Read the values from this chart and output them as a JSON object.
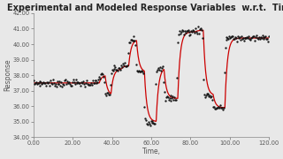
{
  "title": "Experimental and Modeled Response Variables  w.r.t.  Time",
  "xlabel": "Time,",
  "ylabel": "Response",
  "xlim": [
    0,
    120
  ],
  "ylim": [
    34000,
    42000
  ],
  "yticks": [
    34000,
    35000,
    36000,
    37000,
    38000,
    39000,
    40000,
    41000,
    42000
  ],
  "xticks": [
    0,
    20,
    40,
    60,
    80,
    100,
    120
  ],
  "xtick_labels": [
    "0.00",
    "20.00",
    "40.00",
    "60.00",
    "80.00",
    "100.00",
    "120.00"
  ],
  "ytick_labels": [
    "34.00",
    "35.00",
    "36.00",
    "37.00",
    "38.00",
    "39.00",
    "40.00",
    "41.00",
    "42.00"
  ],
  "bg_color": "#e8e8e8",
  "plot_bg": "#e8e8e8",
  "line_color": "#cc0000",
  "dot_color": "#111111",
  "title_fontsize": 7.0,
  "axis_fontsize": 5.5,
  "tick_fontsize": 4.8,
  "step_times": [
    0,
    33,
    36,
    39,
    44,
    48,
    52,
    56,
    62,
    66,
    73,
    82,
    86,
    91,
    97,
    110
  ],
  "step_values": [
    37500,
    38000,
    36700,
    38400,
    38600,
    40300,
    38200,
    35000,
    38500,
    36500,
    40800,
    40900,
    36700,
    35900,
    40400,
    40400
  ],
  "tau": 1.2,
  "theta": 0.5,
  "noise_scale": 110,
  "n_model": 1500,
  "n_exp": 280
}
